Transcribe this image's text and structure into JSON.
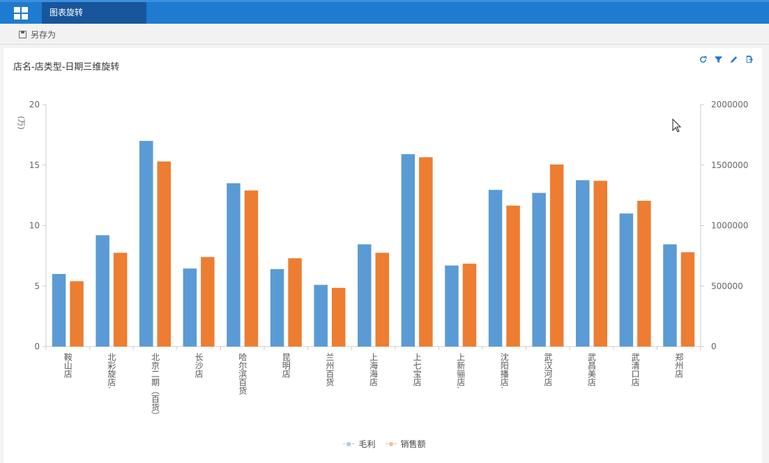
{
  "app": {
    "tab_label": "图表旋转",
    "icon": "grid-icon"
  },
  "toolbar": {
    "save_as_label": "另存为",
    "save_icon": "save-icon"
  },
  "panel": {
    "title": "店名-店类型-日期三维旋转",
    "tools": [
      "refresh-icon",
      "filter-icon",
      "edit-icon",
      "export-icon"
    ]
  },
  "colors": {
    "accent": "#1e7bd0",
    "gross_profit": "#5b9bd5",
    "sales": "#ed7d31"
  },
  "chart_data": {
    "type": "bar",
    "categories": [
      "鞍山店",
      "北彩旋店.",
      "北京二期（百货）",
      "长沙店",
      "哈尔滨百货",
      "昆明店",
      "兰州百货",
      "上海海店",
      "上七宝店",
      "上新骊店.",
      "沈阳播店.",
      "武汉河店",
      "武昌美店",
      "武清口店",
      "郑州店"
    ],
    "series": [
      {
        "name": "毛利",
        "axis": "left",
        "values": [
          6.0,
          9.2,
          17.0,
          6.45,
          13.5,
          6.4,
          5.1,
          8.45,
          15.9,
          6.7,
          12.95,
          12.7,
          13.75,
          11.0,
          8.45
        ]
      },
      {
        "name": "销售额",
        "axis": "right",
        "values": [
          540000,
          775000,
          1530000,
          740000,
          1290000,
          730000,
          485000,
          775000,
          1565000,
          685000,
          1165000,
          1505000,
          1370000,
          1205000,
          780000
        ]
      }
    ],
    "y_left": {
      "label": "(万)",
      "min": 0,
      "max": 20,
      "ticks": [
        "0",
        "5",
        "10",
        "15",
        "20"
      ]
    },
    "y_right": {
      "label": "",
      "min": 0,
      "max": 2000000,
      "ticks": [
        "0",
        "500000",
        "1000000",
        "1500000",
        "2000000"
      ]
    },
    "legend": [
      "毛利",
      "销售额"
    ],
    "legend_position": "bottom-center",
    "grid": false
  }
}
